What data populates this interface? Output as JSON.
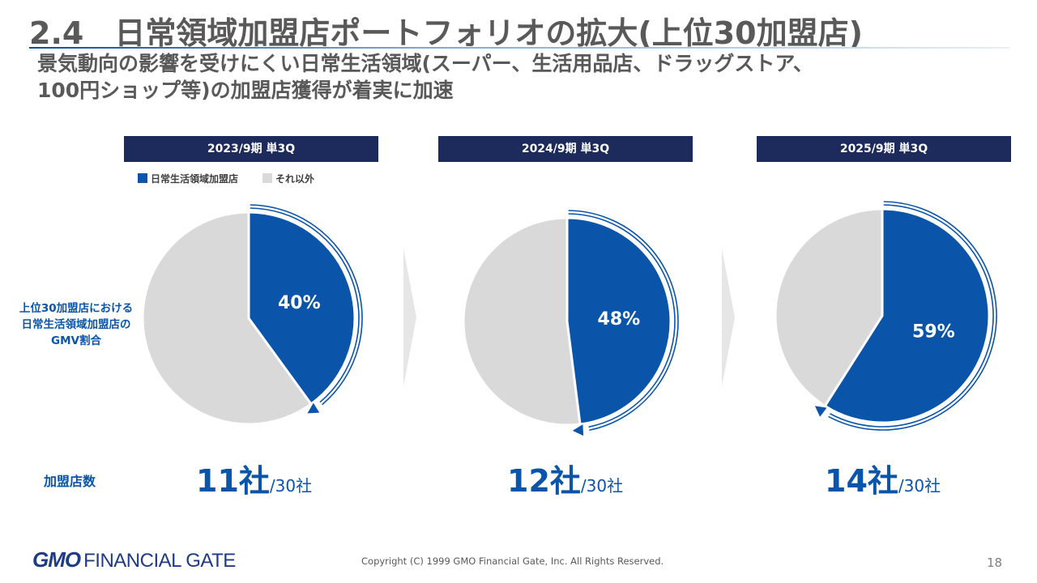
{
  "slide": {
    "title": "2.4　日常領域加盟店ポートフォリオの拡大(上位30加盟店)",
    "subtitle_lines": [
      "景気動向の影響を受けにくい日常生活領域(スーパー、生活用品店、ドラッグストア、",
      "100円ショップ等)の加盟店獲得が着実に加速"
    ],
    "side_label": [
      "上位30加盟店における",
      "日常生活領域加盟店の",
      "GMV割合"
    ],
    "count_label": "加盟店数",
    "copyright": "Copyright (C) 1999 GMO Financial Gate, Inc. All Rights Reserved.",
    "page_number": "18",
    "logo": "GMO FINANCIAL GATE"
  },
  "colors": {
    "accent": "#0a55a9",
    "other": "#d9d9d9",
    "header_bg": "#1c2a5c",
    "title": "#595959"
  },
  "chart_data": [
    {
      "type": "pie",
      "title": "2023/9期 単3Q",
      "legend": [
        "日常生活領域加盟店",
        "それ以外"
      ],
      "legend_position": "top-left",
      "slices": [
        {
          "label": "日常生活領域加盟店",
          "value": 40,
          "display": "40%"
        },
        {
          "label": "それ以外",
          "value": 60
        }
      ],
      "count_main": "11社",
      "count_sub": "/30社"
    },
    {
      "type": "pie",
      "title": "2024/9期 単3Q",
      "slices": [
        {
          "label": "日常生活領域加盟店",
          "value": 48,
          "display": "48%"
        },
        {
          "label": "それ以外",
          "value": 52
        }
      ],
      "count_main": "12社",
      "count_sub": "/30社"
    },
    {
      "type": "pie",
      "title": "2025/9期 単3Q",
      "slices": [
        {
          "label": "日常生活領域加盟店",
          "value": 59,
          "display": "59%"
        },
        {
          "label": "それ以外",
          "value": 41
        }
      ],
      "count_main": "14社",
      "count_sub": "/30社"
    }
  ]
}
